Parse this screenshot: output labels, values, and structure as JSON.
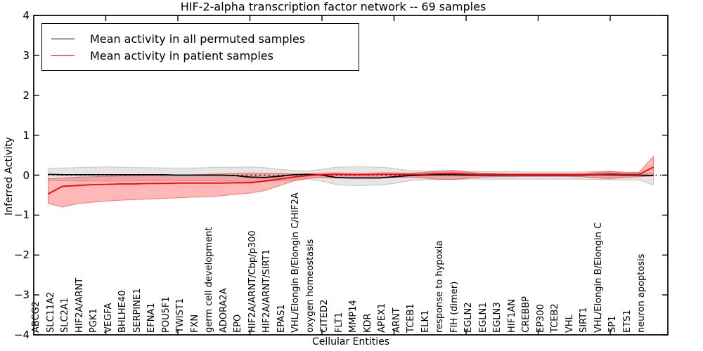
{
  "title": "HIF-2-alpha transcription factor network -- 69 samples",
  "axes": {
    "xlabel": "Cellular Entities",
    "ylabel": "Inferred Activity",
    "ytick_labels": [
      "4",
      "3",
      "2",
      "1",
      "0",
      "−1",
      "−2",
      "−3",
      "−4"
    ]
  },
  "legend": {
    "items": [
      {
        "label": "Mean activity in all permuted samples",
        "color": "#000000"
      },
      {
        "label": "Mean activity in patient samples",
        "color": "#ff0000"
      }
    ]
  },
  "chart_data": {
    "type": "line",
    "title": "HIF-2-alpha transcription factor network -- 69 samples",
    "xlabel": "Cellular Entities",
    "ylabel": "Inferred Activity",
    "ylim": [
      -4,
      4
    ],
    "yticks": [
      4,
      3,
      2,
      1,
      0,
      -1,
      -2,
      -3,
      -4
    ],
    "grid": false,
    "legend_position": "upper left",
    "zero_line": true,
    "categories": [
      "ABCG2",
      "SLC11A2",
      "SLC2A1",
      "HIF2A/ARNT",
      "PGK1",
      "VEGFA",
      "BHLHE40",
      "SERPINE1",
      "EFNA1",
      "POU5F1",
      "TWIST1",
      "FXN",
      "germ cell development",
      "ADORA2A",
      "EPO",
      "HIF2A/ARNT/Cbp/p300",
      "HIF2A/ARNT/SIRT1",
      "EPAS1",
      "VHL/Elongin B/Elongin C/HIF2A",
      "oxygen homeostasis",
      "CITED2",
      "FLT1",
      "MMP14",
      "KDR",
      "APEX1",
      "ARNT",
      "TCEB1",
      "ELK1",
      "response to hypoxia",
      "FIH (dimer)",
      "EGLN2",
      "EGLN1",
      "EGLN3",
      "HIF1AN",
      "CREBBP",
      "EP300",
      "TCEB2",
      "VHL",
      "SIRT1",
      "VHL/Elongin B/Elongin C",
      "SP1",
      "ETS1",
      "neuron apoptosis"
    ],
    "series": [
      {
        "name": "Mean activity in all permuted samples",
        "color": "#000000",
        "band_fill": "rgba(0,0,0,0.10)",
        "band_edge": "rgba(0,0,0,0.18)",
        "values": [
          0.02,
          0.01,
          0.01,
          0.01,
          0.01,
          0.01,
          0.01,
          0.01,
          0.01,
          0.0,
          0.0,
          0.0,
          0.0,
          -0.01,
          -0.05,
          -0.06,
          -0.03,
          0.01,
          0.02,
          0.0,
          -0.06,
          -0.07,
          -0.07,
          -0.07,
          -0.04,
          -0.01,
          0.0,
          0.01,
          0.01,
          0.0,
          0.0,
          0.0,
          0.0,
          0.0,
          0.0,
          0.0,
          0.0,
          0.0,
          0.01,
          0.01,
          0.0,
          0.0,
          -0.01
        ],
        "band_hi": [
          0.17,
          0.18,
          0.19,
          0.2,
          0.21,
          0.2,
          0.19,
          0.19,
          0.18,
          0.18,
          0.18,
          0.19,
          0.2,
          0.2,
          0.21,
          0.19,
          0.15,
          0.12,
          0.1,
          0.15,
          0.2,
          0.21,
          0.21,
          0.2,
          0.17,
          0.12,
          0.1,
          0.1,
          0.1,
          0.1,
          0.09,
          0.09,
          0.09,
          0.08,
          0.08,
          0.08,
          0.08,
          0.08,
          0.09,
          0.1,
          0.08,
          0.06,
          0.05
        ],
        "band_lo": [
          -0.13,
          -0.14,
          -0.15,
          -0.15,
          -0.15,
          -0.15,
          -0.14,
          -0.14,
          -0.14,
          -0.14,
          -0.14,
          -0.14,
          -0.15,
          -0.15,
          -0.16,
          -0.16,
          -0.14,
          -0.12,
          -0.1,
          -0.15,
          -0.24,
          -0.26,
          -0.26,
          -0.25,
          -0.21,
          -0.14,
          -0.12,
          -0.11,
          -0.11,
          -0.1,
          -0.1,
          -0.1,
          -0.1,
          -0.1,
          -0.1,
          -0.1,
          -0.1,
          -0.1,
          -0.11,
          -0.12,
          -0.12,
          -0.12,
          -0.25
        ]
      },
      {
        "name": "Mean activity in patient samples",
        "color": "#ff0000",
        "band_fill": "rgba(255,0,0,0.28)",
        "band_edge": "rgba(255,0,0,0.45)",
        "values": [
          -0.47,
          -0.28,
          -0.26,
          -0.24,
          -0.23,
          -0.22,
          -0.22,
          -0.21,
          -0.21,
          -0.2,
          -0.2,
          -0.2,
          -0.2,
          -0.19,
          -0.19,
          -0.15,
          -0.1,
          -0.05,
          -0.01,
          0.01,
          0.02,
          0.01,
          0.01,
          0.02,
          0.02,
          0.02,
          0.02,
          0.04,
          0.05,
          0.03,
          0.02,
          0.02,
          0.01,
          0.01,
          0.01,
          0.01,
          0.01,
          0.01,
          0.02,
          0.03,
          0.02,
          0.02,
          0.2
        ],
        "band_hi": [
          -0.09,
          -0.07,
          -0.05,
          -0.04,
          -0.03,
          -0.02,
          -0.01,
          -0.01,
          0.0,
          0.0,
          0.01,
          0.02,
          0.03,
          0.04,
          0.05,
          0.05,
          0.04,
          0.03,
          0.03,
          0.05,
          0.06,
          0.05,
          0.05,
          0.06,
          0.06,
          0.05,
          0.07,
          0.1,
          0.12,
          0.08,
          0.05,
          0.04,
          0.04,
          0.04,
          0.04,
          0.04,
          0.04,
          0.04,
          0.07,
          0.09,
          0.06,
          0.07,
          0.47
        ],
        "band_lo": [
          -0.71,
          -0.8,
          -0.72,
          -0.68,
          -0.65,
          -0.63,
          -0.61,
          -0.6,
          -0.58,
          -0.57,
          -0.55,
          -0.54,
          -0.52,
          -0.48,
          -0.45,
          -0.39,
          -0.27,
          -0.15,
          -0.08,
          -0.06,
          -0.07,
          -0.06,
          -0.06,
          -0.06,
          -0.06,
          -0.05,
          -0.07,
          -0.1,
          -0.11,
          -0.08,
          -0.05,
          -0.04,
          -0.04,
          -0.03,
          -0.03,
          -0.03,
          -0.03,
          -0.04,
          -0.07,
          -0.09,
          -0.06,
          -0.04,
          -0.02
        ]
      }
    ]
  }
}
